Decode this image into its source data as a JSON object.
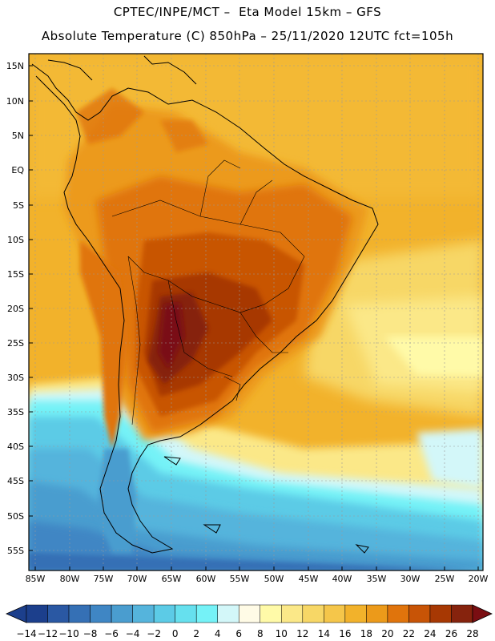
{
  "header": {
    "line1": "CPTEC/INPE/MCT –  Eta Model 15km – GFS",
    "line2": "Absolute Temperature (C) 850hPa – 25/11/2020 12UTC fct=105h"
  },
  "map": {
    "lat_labels": [
      "15N",
      "10N",
      "5N",
      "EQ",
      "5S",
      "10S",
      "15S",
      "20S",
      "25S",
      "30S",
      "35S",
      "40S",
      "45S",
      "50S",
      "55S"
    ],
    "lon_labels": [
      "85W",
      "80W",
      "75W",
      "70W",
      "65W",
      "60W",
      "55W",
      "50W",
      "45W",
      "40W",
      "35W",
      "30W",
      "25W",
      "20W"
    ]
  },
  "colorbar": {
    "labels": [
      "-14",
      "-12",
      "-10",
      "-8",
      "-6",
      "-4",
      "-2",
      "0",
      "2",
      "4",
      "6",
      "8",
      "10",
      "12",
      "14",
      "16",
      "18",
      "20",
      "22",
      "24",
      "26",
      "28"
    ],
    "colors": [
      "#1c3f8c",
      "#2a58a3",
      "#3570b5",
      "#3f86c4",
      "#4a9dcf",
      "#55b4dc",
      "#5ccbe6",
      "#66e0ee",
      "#75f2f7",
      "#d3f7f9",
      "#fffbe6",
      "#fffaa8",
      "#fbe888",
      "#f7d766",
      "#f5c64a",
      "#f2b22b",
      "#ec9a1a",
      "#e0740c",
      "#c85406",
      "#a73803",
      "#86230d"
    ],
    "low_color": "#1c3f8c",
    "high_color": "#7a0e12"
  }
}
